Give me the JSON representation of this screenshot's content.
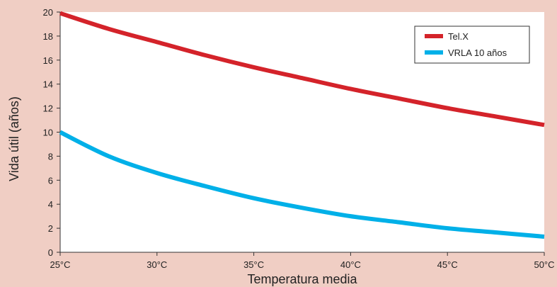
{
  "chart_data": {
    "type": "line",
    "title": "",
    "xlabel": "Temperatura media",
    "ylabel": "Vida útil (años)",
    "x": [
      25,
      27.5,
      30,
      32.5,
      35,
      37.5,
      40,
      42.5,
      45,
      47.5,
      50
    ],
    "x_tick_values": [
      25,
      30,
      35,
      40,
      45,
      50
    ],
    "x_tick_labels": [
      "25°C",
      "30°C",
      "35°C",
      "40°C",
      "45°C",
      "50°C"
    ],
    "y_tick_values": [
      0,
      2,
      4,
      6,
      8,
      10,
      12,
      14,
      16,
      18,
      20
    ],
    "xlim": [
      25,
      50
    ],
    "ylim": [
      0,
      20
    ],
    "grid": false,
    "legend_position": "top-right",
    "series": [
      {
        "name": "Tel.X",
        "color": "#d4232a",
        "values": [
          19.9,
          18.6,
          17.5,
          16.4,
          15.4,
          14.5,
          13.6,
          12.8,
          12.0,
          11.3,
          10.6
        ]
      },
      {
        "name": "VRLA 10 años",
        "color": "#00b0e8",
        "values": [
          10.0,
          8.0,
          6.6,
          5.5,
          4.5,
          3.7,
          3.0,
          2.5,
          2.0,
          1.65,
          1.3
        ]
      }
    ]
  }
}
